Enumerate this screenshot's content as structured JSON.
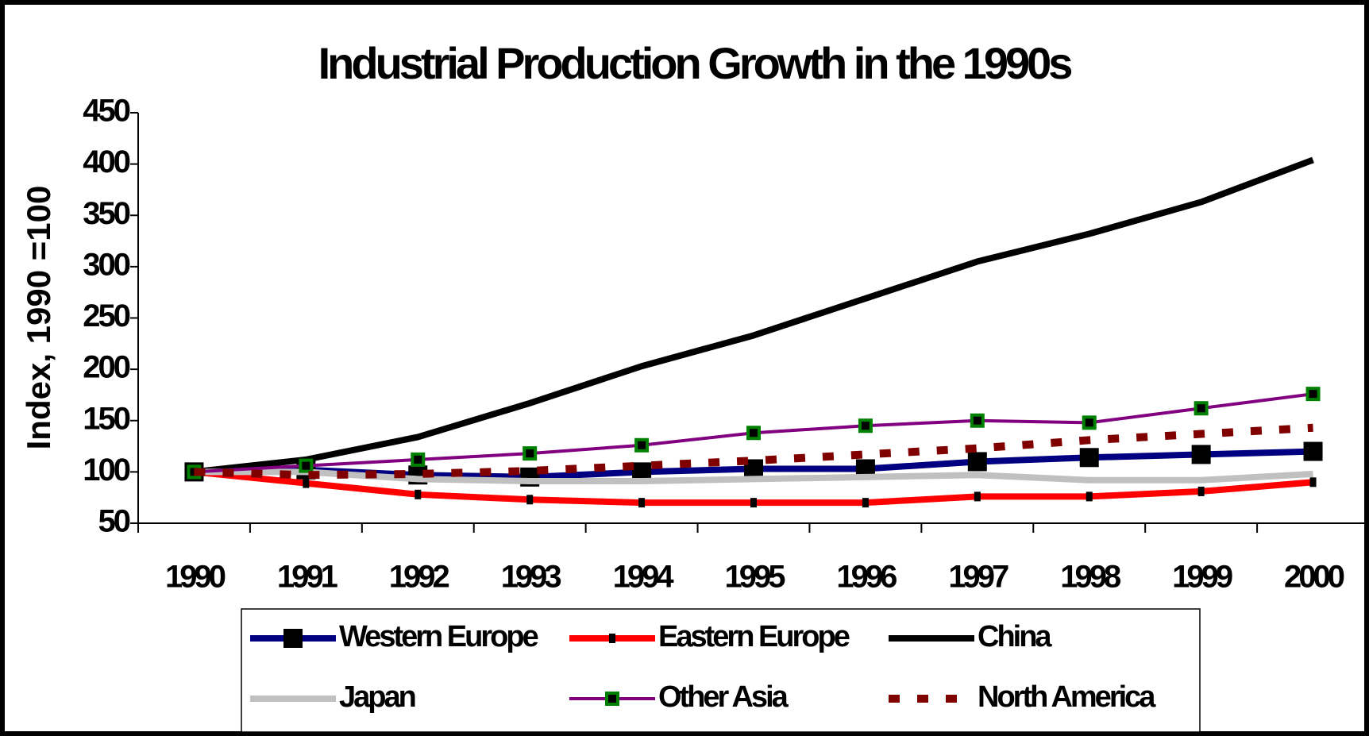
{
  "chart_data": {
    "type": "line",
    "title": "Industrial Production Growth in the 1990s",
    "y_label": "Index, 1990 =100",
    "categories": [
      "1990",
      "1991",
      "1992",
      "1993",
      "1994",
      "1995",
      "1996",
      "1997",
      "1998",
      "1999",
      "2000"
    ],
    "series": [
      {
        "name": "Western Europe",
        "color": "#000080",
        "marker": "square",
        "marker_color": "#000000",
        "values": [
          100,
          102,
          97,
          95,
          100,
          103,
          103,
          110,
          114,
          117,
          120
        ]
      },
      {
        "name": "Eastern Europe",
        "color": "#ff0000",
        "marker": "bar",
        "marker_color": "#000000",
        "values": [
          100,
          89,
          78,
          73,
          70,
          70,
          70,
          76,
          76,
          81,
          90
        ]
      },
      {
        "name": "China",
        "color": "#000000",
        "values": [
          100,
          112,
          134,
          167,
          203,
          233,
          269,
          305,
          332,
          363,
          404
        ]
      },
      {
        "name": "Japan",
        "color": "#c0c0c0",
        "values": [
          100,
          100,
          93,
          91,
          91,
          93,
          95,
          97,
          92,
          92,
          98
        ]
      },
      {
        "name": "Other Asia",
        "color": "#800080",
        "marker": "square",
        "marker_color": "#008000",
        "values": [
          100,
          106,
          112,
          118,
          126,
          138,
          145,
          150,
          148,
          162,
          176
        ]
      },
      {
        "name": "North America",
        "color": "#800000",
        "dash": true,
        "values": [
          100,
          97,
          98,
          101,
          106,
          111,
          117,
          123,
          131,
          137,
          143
        ]
      }
    ],
    "ylim": [
      50,
      450
    ],
    "yticks": [
      50,
      100,
      150,
      200,
      250,
      300,
      350,
      400,
      450
    ],
    "grid": false
  }
}
